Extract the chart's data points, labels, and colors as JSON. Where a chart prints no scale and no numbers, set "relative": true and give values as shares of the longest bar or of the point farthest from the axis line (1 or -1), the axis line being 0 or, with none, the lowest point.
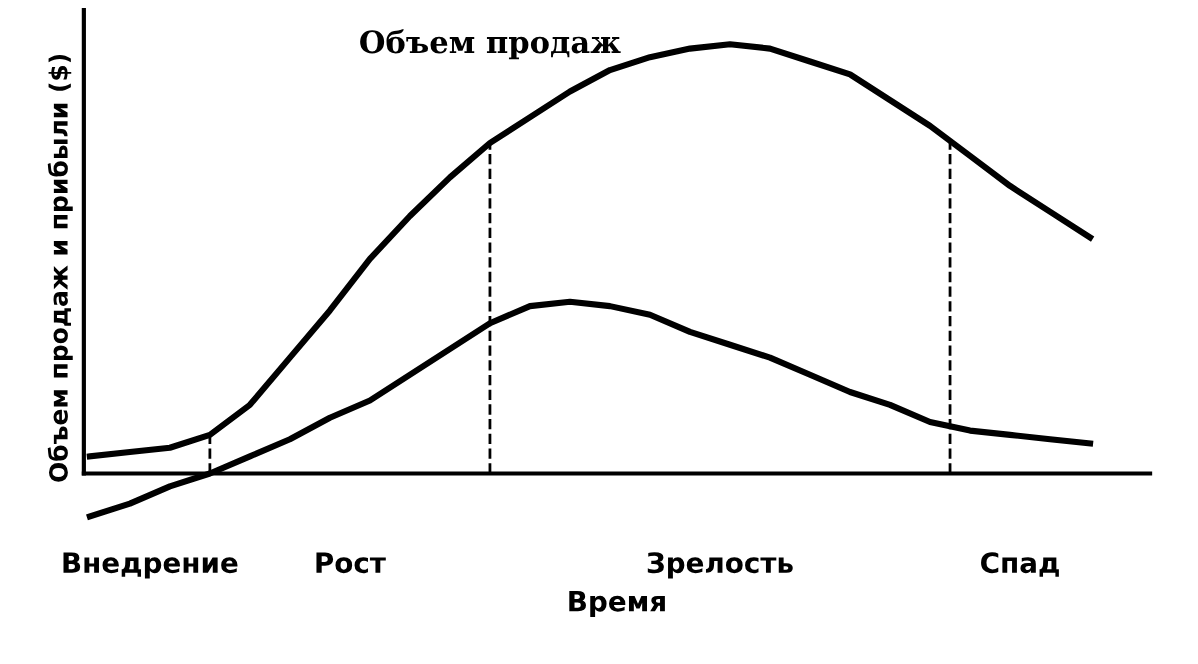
{
  "chart_data": {
    "type": "line",
    "relative": true,
    "xlabel": "Время",
    "ylabel": "Объем продаж и прибыли ($)",
    "categories": [
      null,
      null,
      null,
      null,
      null,
      null,
      null,
      null,
      null,
      null,
      null,
      null,
      null,
      null,
      null,
      null,
      null,
      null,
      null,
      null,
      null,
      null,
      null,
      null,
      null,
      null
    ],
    "series": [
      {
        "name": "Объем продаж",
        "color": "#000000",
        "values": [
          0.04,
          0.05,
          0.06,
          0.09,
          0.16,
          0.27,
          0.38,
          0.5,
          0.6,
          0.69,
          0.77,
          0.83,
          0.89,
          0.94,
          0.97,
          0.99,
          1.0,
          0.99,
          0.96,
          0.93,
          0.87,
          0.81,
          0.74,
          0.67,
          0.61,
          0.55
        ]
      },
      {
        "color": "#000000",
        "values": [
          -0.1,
          -0.07,
          -0.03,
          0,
          0.04,
          0.08,
          0.13,
          0.17,
          0.23,
          0.29,
          0.35,
          0.39,
          0.4,
          0.39,
          0.37,
          0.33,
          0.3,
          0.27,
          0.23,
          0.19,
          0.16,
          0.12,
          0.1,
          0.09,
          0.08,
          0.07
        ]
      }
    ],
    "annotations": [
      "Внедрение",
      "Рост",
      "Зрелость",
      "Спад"
    ],
    "legend": false,
    "marker": "none",
    "line_style": "solid"
  }
}
